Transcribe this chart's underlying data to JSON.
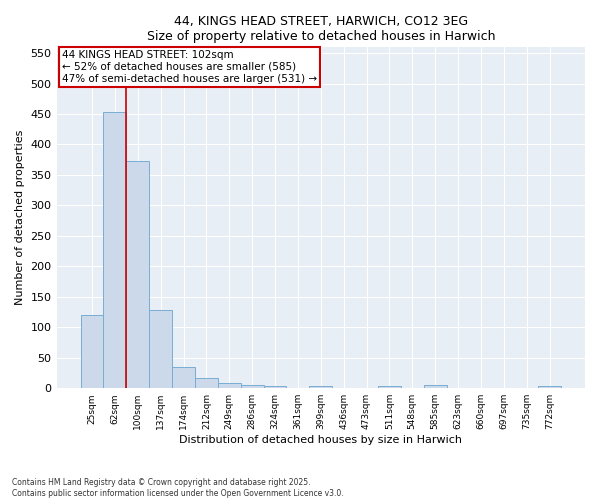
{
  "title": "44, KINGS HEAD STREET, HARWICH, CO12 3EG",
  "subtitle": "Size of property relative to detached houses in Harwich",
  "xlabel": "Distribution of detached houses by size in Harwich",
  "ylabel": "Number of detached properties",
  "bins": [
    "25sqm",
    "62sqm",
    "100sqm",
    "137sqm",
    "174sqm",
    "212sqm",
    "249sqm",
    "286sqm",
    "324sqm",
    "361sqm",
    "399sqm",
    "436sqm",
    "473sqm",
    "511sqm",
    "548sqm",
    "585sqm",
    "623sqm",
    "660sqm",
    "697sqm",
    "735sqm",
    "772sqm"
  ],
  "values": [
    120,
    453,
    373,
    128,
    35,
    16,
    8,
    5,
    3,
    0,
    3,
    0,
    0,
    4,
    0,
    5,
    0,
    0,
    0,
    0,
    3
  ],
  "bar_color": "#ccd9ea",
  "bar_edge_color": "#7aadd4",
  "vline_index": 2,
  "annotation_line1": "44 KINGS HEAD STREET: 102sqm",
  "annotation_line2": "← 52% of detached houses are smaller (585)",
  "annotation_line3": "47% of semi-detached houses are larger (531) →",
  "annotation_box_color": "#ffffff",
  "annotation_border_color": "#cc0000",
  "vline_color": "#cc0000",
  "ylim": [
    0,
    560
  ],
  "yticks": [
    0,
    50,
    100,
    150,
    200,
    250,
    300,
    350,
    400,
    450,
    500,
    550
  ],
  "footer_line1": "Contains HM Land Registry data © Crown copyright and database right 2025.",
  "footer_line2": "Contains public sector information licensed under the Open Government Licence v3.0.",
  "bg_color": "#ffffff",
  "plot_bg_color": "#e8eef5",
  "grid_color": "#ffffff",
  "title_fontsize": 9,
  "subtitle_fontsize": 9
}
